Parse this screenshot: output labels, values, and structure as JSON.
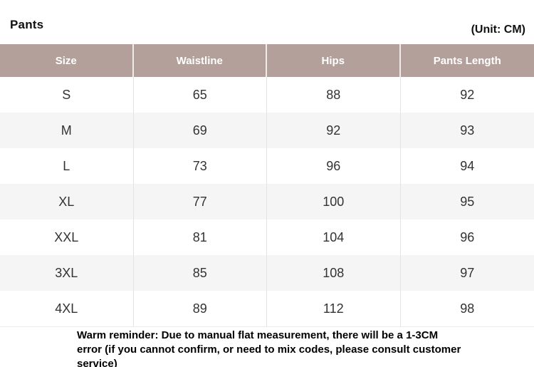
{
  "header": {
    "title": "Pants",
    "unit": "(Unit: CM)"
  },
  "chart_data": {
    "type": "table",
    "title": "Pants",
    "unit": "(Unit: CM)",
    "columns": [
      "Size",
      "Waistline",
      "Hips",
      "Pants Length"
    ],
    "rows": [
      [
        "S",
        65,
        88,
        92
      ],
      [
        "M",
        69,
        92,
        93
      ],
      [
        "L",
        73,
        96,
        94
      ],
      [
        "XL",
        77,
        100,
        95
      ],
      [
        "XXL",
        81,
        104,
        96
      ],
      [
        "3XL",
        85,
        108,
        97
      ],
      [
        "4XL",
        89,
        112,
        98
      ]
    ]
  },
  "footer": {
    "reminder": "Warm reminder: Due to manual flat measurement, there will be a 1-3CM error (if you cannot confirm, or need to mix codes, please consult customer service)"
  },
  "colors": {
    "header_bg": "#b3a09a",
    "header_text": "#ffffff",
    "row_alt_bg": "#f5f5f6",
    "body_divider": "#e3e3e3",
    "header_divider": "#f1ece9",
    "body_text": "#333333",
    "title_text": "#111111"
  }
}
